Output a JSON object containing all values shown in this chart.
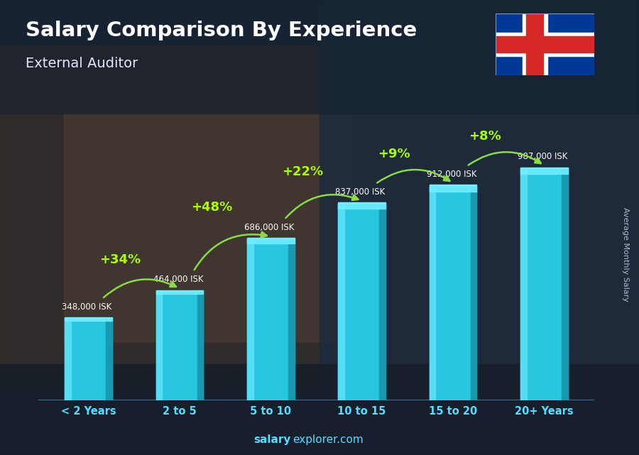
{
  "title": "Salary Comparison By Experience",
  "subtitle": "External Auditor",
  "categories": [
    "< 2 Years",
    "2 to 5",
    "5 to 10",
    "10 to 15",
    "15 to 20",
    "20+ Years"
  ],
  "values": [
    348000,
    464000,
    686000,
    837000,
    912000,
    987000
  ],
  "labels": [
    "348,000 ISK",
    "464,000 ISK",
    "686,000 ISK",
    "837,000 ISK",
    "912,000 ISK",
    "987,000 ISK"
  ],
  "pct_labels": [
    "+34%",
    "+48%",
    "+22%",
    "+9%",
    "+8%"
  ],
  "bar_main": "#29c6e0",
  "bar_light": "#55ddf5",
  "bar_dark": "#1899b0",
  "bar_top": "#70eeff",
  "bg_dark": "#1a2535",
  "bg_mid": "#2a3545",
  "title_color": "#ffffff",
  "subtitle_color": "#e0e8ff",
  "label_color": "#ffffff",
  "xtick_color": "#55ddff",
  "pct_color": "#aaff00",
  "arrow_color": "#88dd44",
  "footer_bold": "salary",
  "footer_rest": "explorer.com",
  "footer_color": "#55ddff",
  "ylabel": "Average Monthly Salary",
  "ylim": [
    0,
    1200000
  ],
  "flag_blue": "#003897",
  "flag_white": "#ffffff",
  "flag_red": "#d72828"
}
